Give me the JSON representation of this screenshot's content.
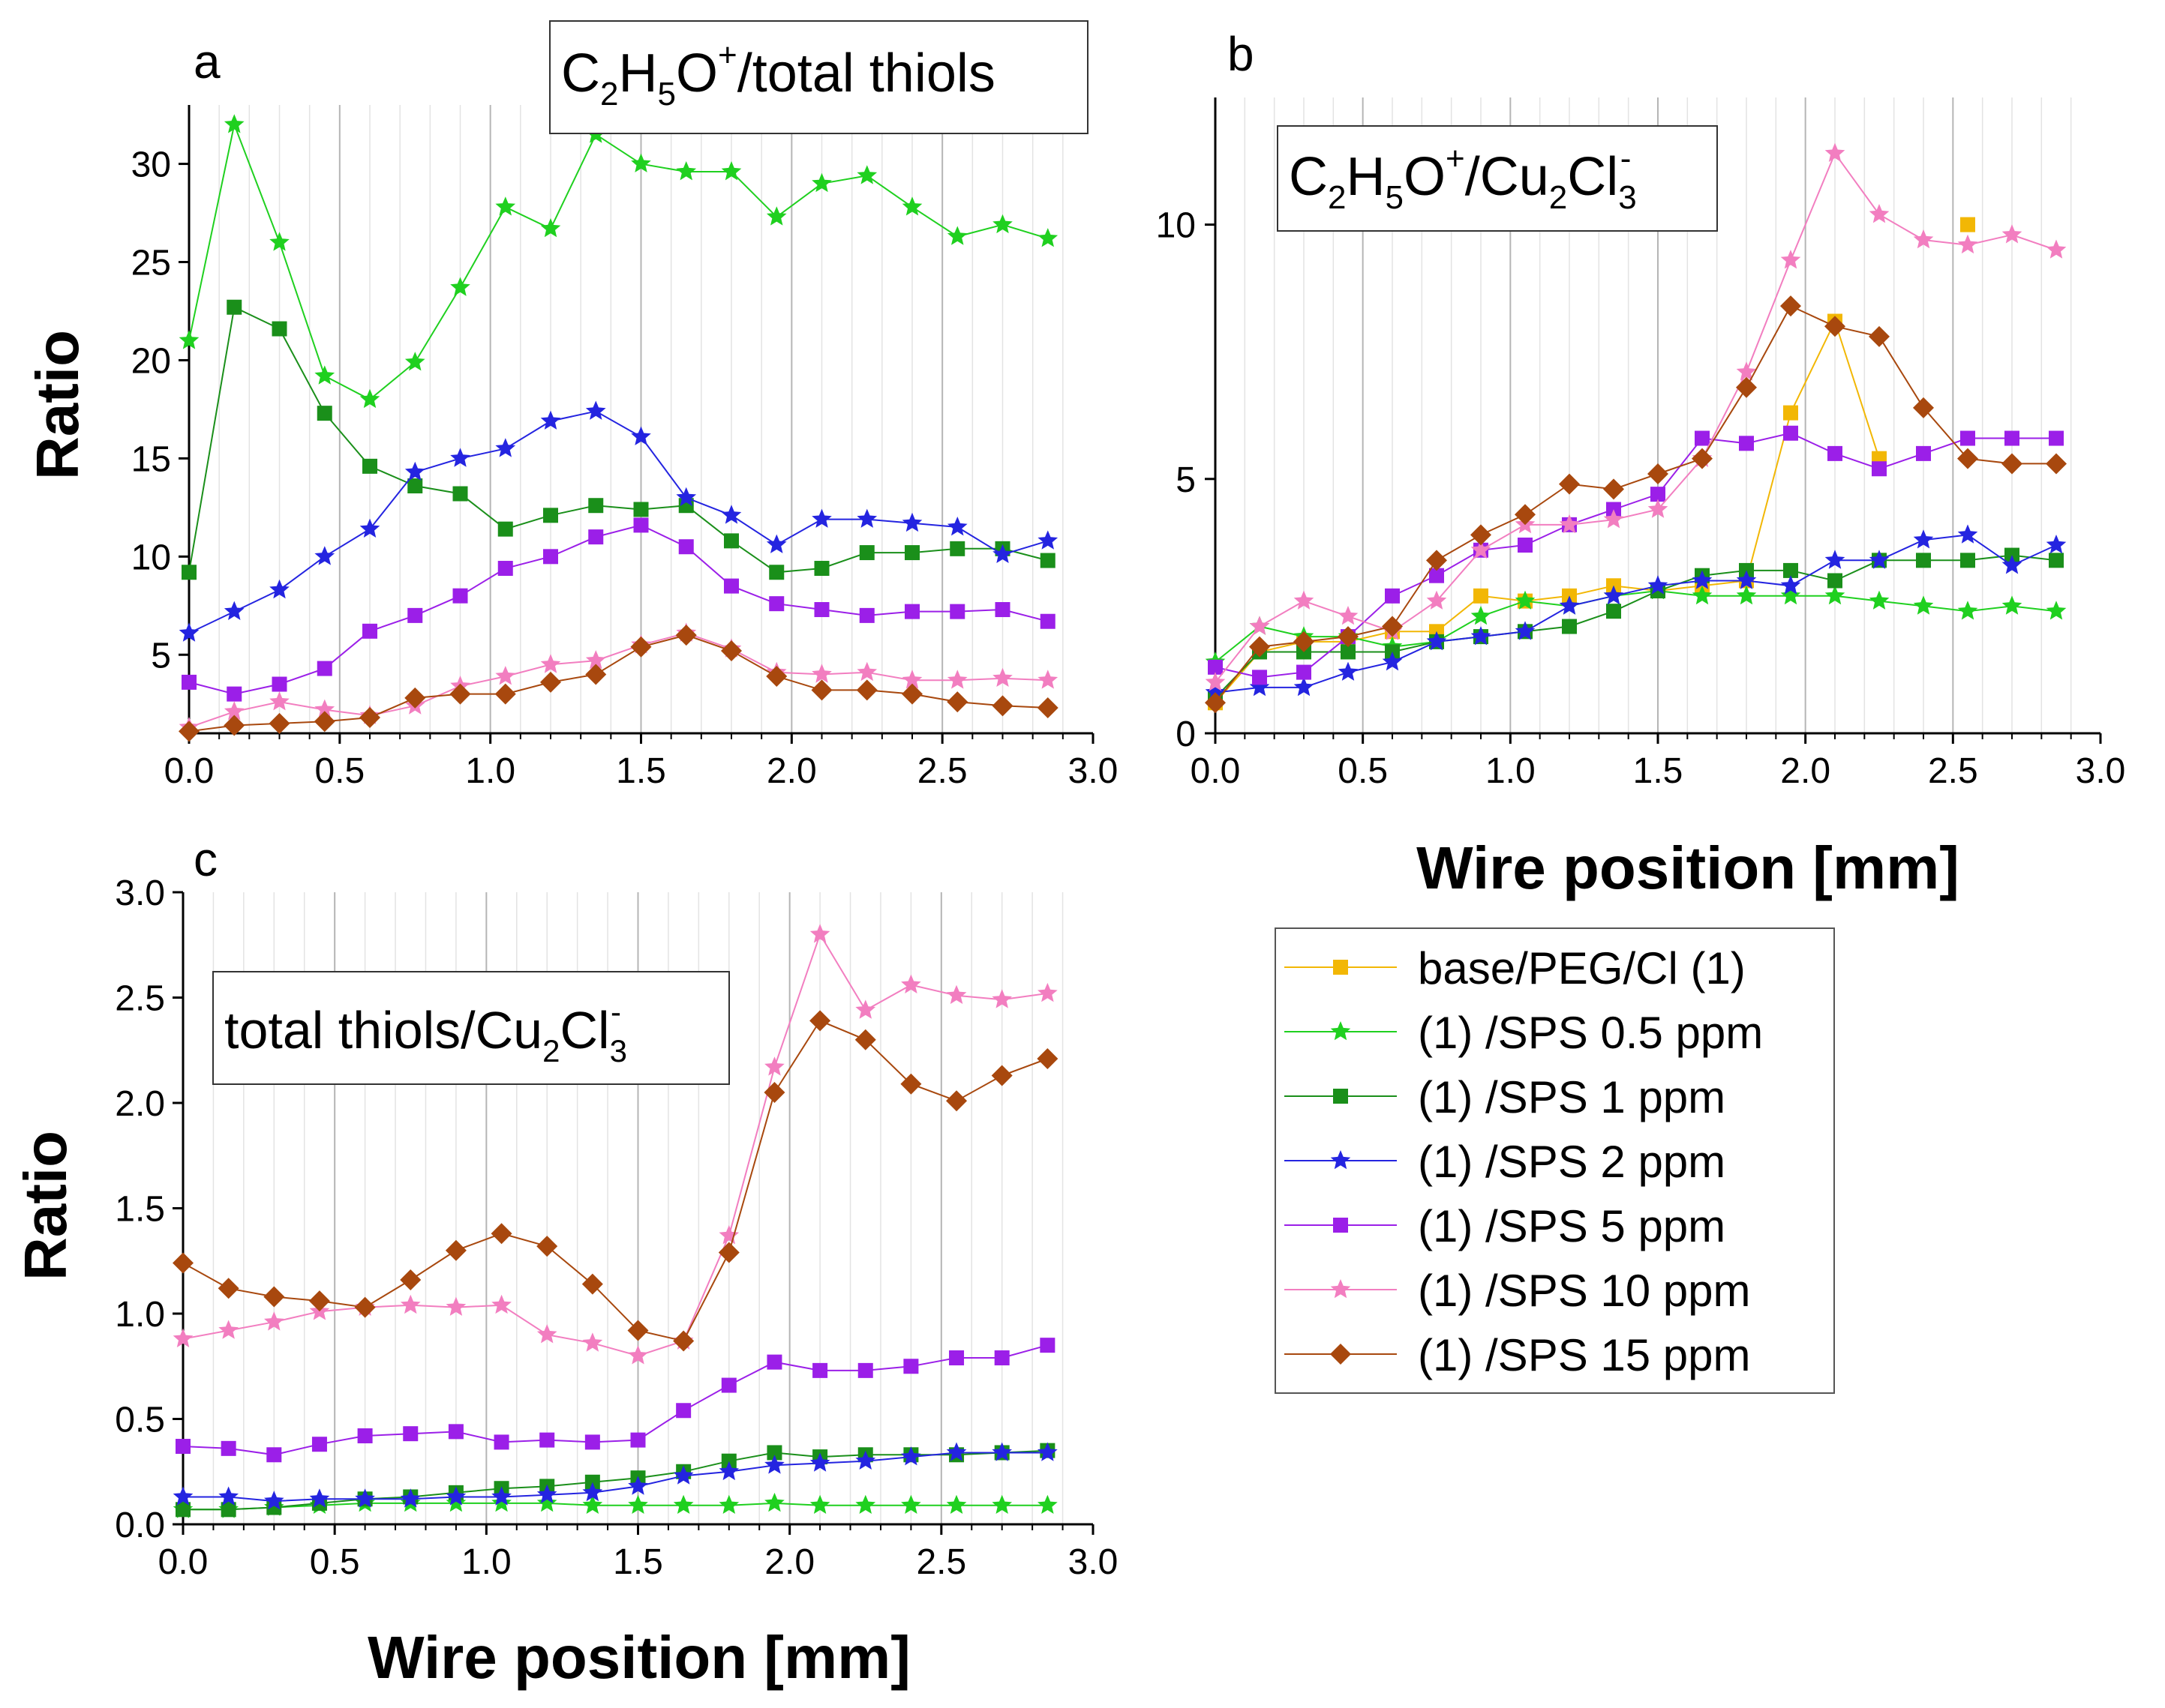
{
  "figure": {
    "series_styles": [
      {
        "name": "base/PEG/Cl (1)",
        "color": "#F2B705",
        "marker": "square"
      },
      {
        "name": "(1) /SPS 0.5 ppm",
        "color": "#1FD01F",
        "marker": "star"
      },
      {
        "name": "(1) /SPS 1 ppm",
        "color": "#1A8F1A",
        "marker": "square"
      },
      {
        "name": "(1) /SPS 2 ppm",
        "color": "#2424E0",
        "marker": "star"
      },
      {
        "name": "(1) /SPS 5 ppm",
        "color": "#9B1FE8",
        "marker": "square"
      },
      {
        "name": "(1) /SPS 10 ppm",
        "color": "#F27EC0",
        "marker": "star"
      },
      {
        "name": "(1) /SPS 15 ppm",
        "color": "#A8480E",
        "marker": "diamond"
      }
    ],
    "legend": {
      "position": "bottom-right",
      "entries": [
        "base/PEG/Cl (1)",
        "(1) /SPS 0.5 ppm",
        "(1) /SPS 1 ppm",
        "(1) /SPS 2 ppm",
        "(1) /SPS 5 ppm",
        "(1) /SPS 10 ppm",
        "(1) /SPS 15 ppm"
      ]
    }
  },
  "chart_data": [
    {
      "panel": "a",
      "type": "line",
      "annotation": {
        "main": "C",
        "sub1": "2",
        "mid1": "H",
        "sub2": "5",
        "mid2": "O",
        "sup": "+",
        "tail": "/total thiols"
      },
      "xlabel": "",
      "ylabel": "Ratio",
      "xlim": [
        0,
        3.0
      ],
      "ylim": [
        1,
        33
      ],
      "xticks": [
        "0.0",
        "0.5",
        "1.0",
        "1.5",
        "2.0",
        "2.5",
        "3.0"
      ],
      "yticks": [
        "5",
        "10",
        "15",
        "20",
        "25",
        "30"
      ],
      "x": [
        0,
        0.15,
        0.3,
        0.45,
        0.6,
        0.75,
        0.9,
        1.05,
        1.2,
        1.35,
        1.5,
        1.65,
        1.8,
        1.95,
        2.1,
        2.25,
        2.4,
        2.55,
        2.7,
        2.85
      ],
      "series": [
        {
          "name": "(1) /SPS 0.5 ppm",
          "values": [
            21.0,
            32.0,
            26.0,
            19.2,
            18.0,
            19.9,
            23.7,
            27.8,
            26.7,
            31.5,
            30.0,
            29.6,
            29.6,
            27.3,
            29.0,
            29.4,
            27.8,
            26.3,
            26.9,
            26.2
          ]
        },
        {
          "name": "(1) /SPS 1 ppm",
          "values": [
            9.2,
            22.7,
            21.6,
            17.3,
            14.6,
            13.6,
            13.2,
            11.4,
            12.1,
            12.6,
            12.4,
            12.6,
            10.8,
            9.2,
            9.4,
            10.2,
            10.2,
            10.4,
            10.4,
            9.8
          ]
        },
        {
          "name": "(1) /SPS 2 ppm",
          "values": [
            6.1,
            7.2,
            8.3,
            10.0,
            11.4,
            14.3,
            15.0,
            15.5,
            16.9,
            17.4,
            16.1,
            13.0,
            12.1,
            10.6,
            11.9,
            11.9,
            11.7,
            11.5,
            10.1,
            10.8
          ]
        },
        {
          "name": "(1) /SPS 5 ppm",
          "values": [
            3.6,
            3.0,
            3.5,
            4.3,
            6.2,
            7.0,
            8.0,
            9.4,
            10.0,
            11.0,
            11.6,
            10.5,
            8.5,
            7.6,
            7.3,
            7.0,
            7.2,
            7.2,
            7.3,
            6.7
          ]
        },
        {
          "name": "(1) /SPS 10 ppm",
          "values": [
            1.3,
            2.1,
            2.6,
            2.2,
            1.9,
            2.4,
            3.4,
            3.9,
            4.5,
            4.7,
            5.5,
            6.1,
            5.3,
            4.1,
            4.0,
            4.1,
            3.7,
            3.7,
            3.8,
            3.7
          ]
        },
        {
          "name": "(1) /SPS 15 ppm",
          "values": [
            1.1,
            1.4,
            1.5,
            1.6,
            1.8,
            2.8,
            3.0,
            3.0,
            3.6,
            4.0,
            5.4,
            6.0,
            5.2,
            3.9,
            3.2,
            3.2,
            3.0,
            2.6,
            2.4,
            2.3
          ]
        }
      ]
    },
    {
      "panel": "b",
      "type": "line",
      "annotation": {
        "main": "C",
        "sub1": "2",
        "mid1": "H",
        "sub2": "5",
        "mid2": "O",
        "sup": "+",
        "tail": "/Cu",
        "sub3": "2",
        "tail2": "Cl",
        "sub4": "3",
        "sup2": "-"
      },
      "xlabel": "Wire position [mm]",
      "ylabel": "",
      "xlim": [
        0,
        3.0
      ],
      "ylim": [
        0,
        12.5
      ],
      "xticks": [
        "0.0",
        "0.5",
        "1.0",
        "1.5",
        "2.0",
        "2.5",
        "3.0"
      ],
      "yticks": [
        "0",
        "5",
        "10"
      ],
      "x": [
        0,
        0.15,
        0.3,
        0.45,
        0.6,
        0.75,
        0.9,
        1.05,
        1.2,
        1.35,
        1.5,
        1.65,
        1.8,
        1.95,
        2.1,
        2.25,
        2.4,
        2.55,
        2.7,
        2.85
      ],
      "series": [
        {
          "name": "base/PEG/Cl (1)",
          "values": [
            0.6,
            1.6,
            1.8,
            1.8,
            2.0,
            2.0,
            2.7,
            2.6,
            2.7,
            2.9,
            2.8,
            2.9,
            3.0,
            6.3,
            8.1,
            5.4,
            null,
            10.0,
            null,
            null
          ]
        },
        {
          "name": "(1) /SPS 0.5 ppm",
          "values": [
            1.4,
            2.1,
            1.9,
            1.9,
            1.7,
            1.8,
            2.3,
            2.6,
            2.5,
            2.7,
            2.8,
            2.7,
            2.7,
            2.7,
            2.7,
            2.6,
            2.5,
            2.4,
            2.5,
            2.4
          ]
        },
        {
          "name": "(1) /SPS 1 ppm",
          "values": [
            0.7,
            1.6,
            1.6,
            1.6,
            1.6,
            1.8,
            1.9,
            2.0,
            2.1,
            2.4,
            2.8,
            3.1,
            3.2,
            3.2,
            3.0,
            3.4,
            3.4,
            3.4,
            3.5,
            3.4
          ]
        },
        {
          "name": "(1) /SPS 2 ppm",
          "values": [
            0.8,
            0.9,
            0.9,
            1.2,
            1.4,
            1.8,
            1.9,
            2.0,
            2.5,
            2.7,
            2.9,
            3.0,
            3.0,
            2.9,
            3.4,
            3.4,
            3.8,
            3.9,
            3.3,
            3.7
          ]
        },
        {
          "name": "(1) /SPS 5 ppm",
          "values": [
            1.3,
            1.1,
            1.2,
            1.9,
            2.7,
            3.1,
            3.6,
            3.7,
            4.1,
            4.4,
            4.7,
            5.8,
            5.7,
            5.9,
            5.5,
            5.2,
            5.5,
            5.8,
            5.8,
            5.8
          ]
        },
        {
          "name": "(1) /SPS 10 ppm",
          "values": [
            1.0,
            2.1,
            2.6,
            2.3,
            2.0,
            2.6,
            3.6,
            4.1,
            4.1,
            4.2,
            4.4,
            5.4,
            7.1,
            9.3,
            11.4,
            10.2,
            9.7,
            9.6,
            9.8,
            9.5
          ]
        },
        {
          "name": "(1) /SPS 15 ppm",
          "values": [
            0.6,
            1.7,
            1.8,
            1.9,
            2.1,
            3.4,
            3.9,
            4.3,
            4.9,
            4.8,
            5.1,
            5.4,
            6.8,
            8.4,
            8.0,
            7.8,
            6.4,
            5.4,
            5.3,
            5.3
          ]
        }
      ]
    },
    {
      "panel": "c",
      "type": "line",
      "annotation": {
        "main": "total thiols/Cu",
        "sub1": "2",
        "mid1": "Cl",
        "sub2": "3",
        "sup": "-"
      },
      "xlabel": "Wire position [mm]",
      "ylabel": "Ratio",
      "xlim": [
        0,
        3.0
      ],
      "ylim": [
        0,
        3.0
      ],
      "xticks": [
        "0.0",
        "0.5",
        "1.0",
        "1.5",
        "2.0",
        "2.5",
        "3.0"
      ],
      "yticks": [
        "0.0",
        "0.5",
        "1.0",
        "1.5",
        "2.0",
        "2.5",
        "3.0"
      ],
      "x": [
        0,
        0.15,
        0.3,
        0.45,
        0.6,
        0.75,
        0.9,
        1.05,
        1.2,
        1.35,
        1.5,
        1.65,
        1.8,
        1.95,
        2.1,
        2.25,
        2.4,
        2.55,
        2.7,
        2.85
      ],
      "series": [
        {
          "name": "(1) /SPS 0.5 ppm",
          "values": [
            0.07,
            0.07,
            0.08,
            0.09,
            0.1,
            0.1,
            0.1,
            0.1,
            0.1,
            0.09,
            0.09,
            0.09,
            0.09,
            0.1,
            0.09,
            0.09,
            0.09,
            0.09,
            0.09,
            0.09
          ]
        },
        {
          "name": "(1) /SPS 1 ppm",
          "values": [
            0.07,
            0.07,
            0.08,
            0.1,
            0.12,
            0.13,
            0.15,
            0.17,
            0.18,
            0.2,
            0.22,
            0.25,
            0.3,
            0.34,
            0.32,
            0.33,
            0.33,
            0.33,
            0.34,
            0.35
          ]
        },
        {
          "name": "(1) /SPS 2 ppm",
          "values": [
            0.13,
            0.13,
            0.11,
            0.12,
            0.12,
            0.12,
            0.13,
            0.13,
            0.14,
            0.15,
            0.18,
            0.23,
            0.25,
            0.28,
            0.29,
            0.3,
            0.32,
            0.34,
            0.34,
            0.34
          ]
        },
        {
          "name": "(1) /SPS 5 ppm",
          "values": [
            0.37,
            0.36,
            0.33,
            0.38,
            0.42,
            0.43,
            0.44,
            0.39,
            0.4,
            0.39,
            0.4,
            0.54,
            0.66,
            0.77,
            0.73,
            0.73,
            0.75,
            0.79,
            0.79,
            0.85
          ]
        },
        {
          "name": "(1) /SPS 10 ppm",
          "values": [
            0.88,
            0.92,
            0.96,
            1.01,
            1.03,
            1.04,
            1.03,
            1.04,
            0.9,
            0.86,
            0.8,
            0.87,
            1.37,
            2.17,
            2.8,
            2.44,
            2.56,
            2.51,
            2.49,
            2.52
          ]
        },
        {
          "name": "(1) /SPS 15 ppm",
          "values": [
            1.24,
            1.12,
            1.08,
            1.06,
            1.03,
            1.16,
            1.3,
            1.38,
            1.32,
            1.14,
            0.92,
            0.87,
            1.29,
            2.05,
            2.39,
            2.3,
            2.09,
            2.01,
            2.13,
            2.21
          ]
        }
      ]
    }
  ]
}
